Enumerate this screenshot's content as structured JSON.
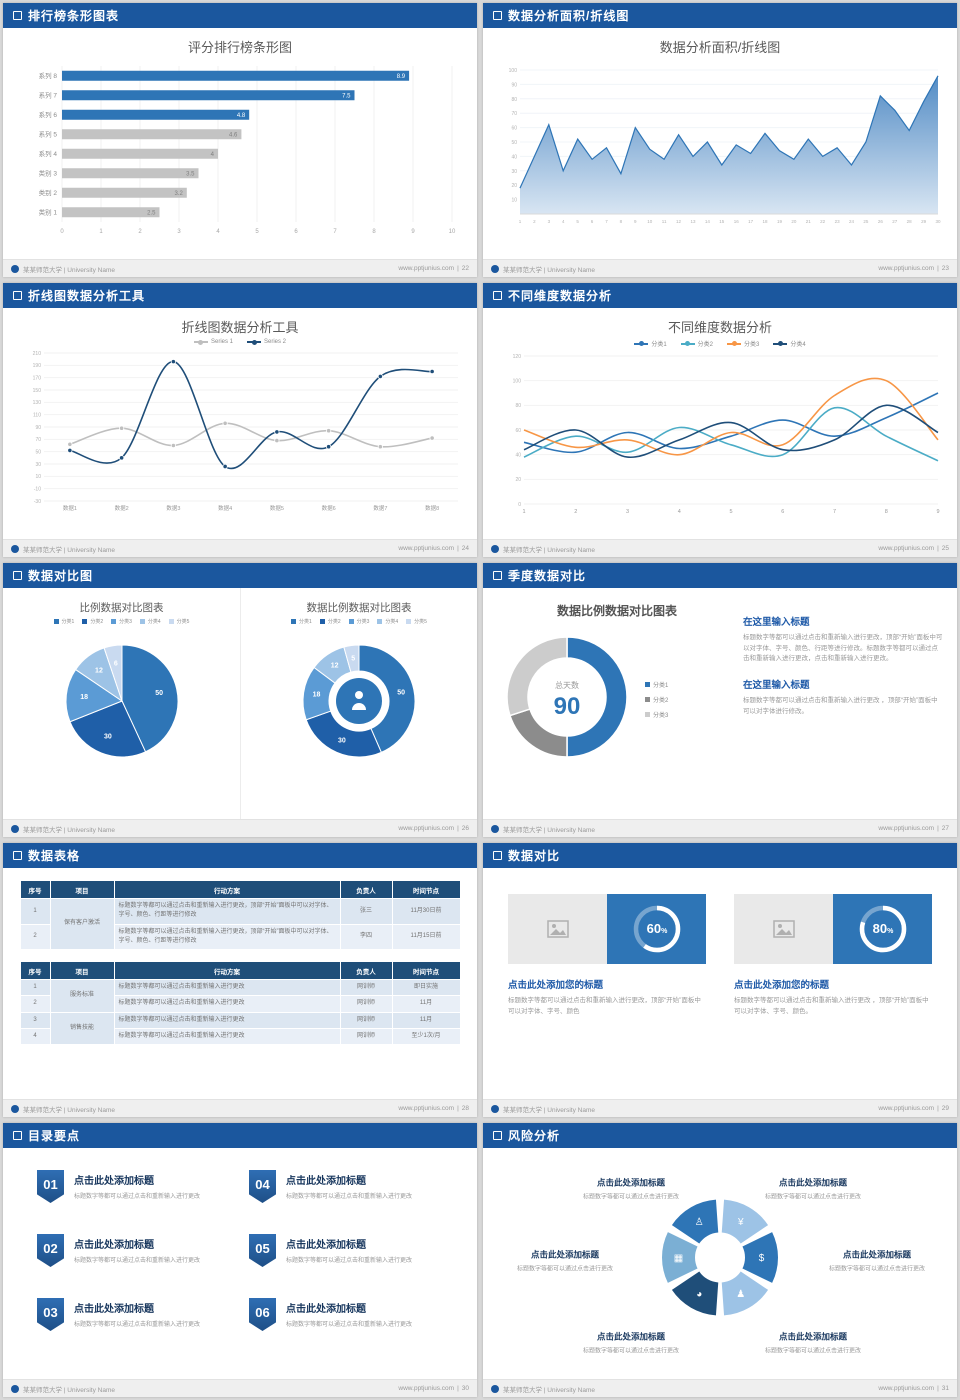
{
  "theme": {
    "header_blue": "#1b579e",
    "accent": "#2e75b6",
    "dark_blue": "#1f4e79",
    "bar_gray": "#c3c3c3",
    "title_gray": "#595959"
  },
  "footer": {
    "university": "某某师范大学 | University Name",
    "site": "www.pptjunius.com",
    "sep": "|"
  },
  "slides": [
    {
      "page": "22",
      "header": "排行榜条形图表",
      "title": "评分排行榜条形图",
      "chart": {
        "type": "bar",
        "orientation": "horizontal",
        "categories": [
          "系列 8",
          "系列 7",
          "系列 6",
          "系列 5",
          "系列 4",
          "类别 3",
          "类别 2",
          "类别 1"
        ],
        "values": [
          8.9,
          7.5,
          4.8,
          4.6,
          4,
          3.5,
          3.2,
          2.5
        ],
        "colors": [
          "#2e75b6",
          "#2e75b6",
          "#2e75b6",
          "#c3c3c3",
          "#c3c3c3",
          "#c3c3c3",
          "#c3c3c3",
          "#c3c3c3"
        ],
        "xlim": [
          0,
          10
        ],
        "xticks": [
          0,
          1,
          2,
          3,
          4,
          5,
          6,
          7,
          8,
          9,
          10
        ]
      }
    },
    {
      "page": "23",
      "header": "数据分析面积/折线图",
      "title": "数据分析面积/折线图",
      "chart": {
        "type": "area",
        "x": [
          1,
          2,
          3,
          4,
          5,
          6,
          7,
          8,
          9,
          10,
          11,
          12,
          13,
          14,
          15,
          16,
          17,
          18,
          19,
          20,
          21,
          22,
          23,
          24,
          25,
          26,
          27,
          28,
          29,
          30
        ],
        "values": [
          18,
          40,
          62,
          30,
          52,
          38,
          46,
          28,
          60,
          45,
          38,
          55,
          40,
          50,
          34,
          48,
          42,
          56,
          44,
          38,
          52,
          40,
          46,
          34,
          50,
          82,
          72,
          58,
          78,
          96
        ],
        "yticks": [
          100,
          90,
          80,
          70,
          60,
          50,
          40,
          30,
          20,
          10
        ],
        "ylim": [
          0,
          100
        ],
        "line_color": "#2e75b6",
        "fill_from": "#4a86c2",
        "fill_to": "#d6e4f2"
      }
    },
    {
      "page": "24",
      "header": "折线图数据分析工具",
      "title": "折线图数据分析工具",
      "chart": {
        "type": "line",
        "categories": [
          "数据1",
          "数据2",
          "数据3",
          "数据4",
          "数据5",
          "数据6",
          "数据7",
          "数据8"
        ],
        "yticks": [
          210,
          190,
          170,
          150,
          130,
          110,
          90,
          70,
          50,
          30,
          10,
          -10,
          -30
        ],
        "series": [
          {
            "name": "Series 1",
            "color": "#bfbfbf",
            "values": [
              62,
              88,
              60,
              96,
              68,
              84,
              58,
              72
            ]
          },
          {
            "name": "Series 2",
            "color": "#1f4e79",
            "values": [
              52,
              40,
              196,
              26,
              82,
              58,
              172,
              180
            ]
          }
        ]
      }
    },
    {
      "page": "25",
      "header": "不同维度数据分析",
      "title": "不同维度数据分析",
      "chart": {
        "type": "line",
        "x": [
          1,
          2,
          3,
          4,
          5,
          6,
          7,
          8,
          9
        ],
        "yticks": [
          120,
          100,
          80,
          60,
          40,
          20,
          0
        ],
        "series": [
          {
            "name": "分类1",
            "color": "#2e75b6",
            "values": [
              50,
              42,
              58,
              45,
              55,
              68,
              55,
              70,
              90
            ]
          },
          {
            "name": "分类2",
            "color": "#4bacc6",
            "values": [
              38,
              55,
              42,
              62,
              48,
              40,
              78,
              55,
              35
            ]
          },
          {
            "name": "分类3",
            "color": "#f79646",
            "values": [
              60,
              46,
              52,
              40,
              58,
              48,
              88,
              100,
              52
            ]
          },
          {
            "name": "分类4",
            "color": "#1f4e79",
            "values": [
              44,
              60,
              38,
              52,
              66,
              44,
              52,
              80,
              58
            ]
          }
        ]
      }
    },
    {
      "page": "26",
      "header": "数据对比图",
      "left": {
        "title": "比例数据对比图表",
        "chart": {
          "type": "pie",
          "values": [
            50,
            30,
            18,
            12,
            6
          ],
          "labels": [
            "50",
            "30",
            "18",
            "12",
            "6"
          ],
          "colors": [
            "#2e75b6",
            "#1f5fa8",
            "#5b9bd5",
            "#9dc3e6",
            "#c9daf0"
          ],
          "legend": [
            "分类1",
            "分类2",
            "分类3",
            "分类4",
            "分类5"
          ]
        }
      },
      "right": {
        "title": "数据比例数据对比图表",
        "chart": {
          "type": "donut",
          "values": [
            50,
            30,
            18,
            12,
            5
          ],
          "labels": [
            "50",
            "30",
            "18",
            "12",
            "5"
          ],
          "colors": [
            "#2e75b6",
            "#1f5fa8",
            "#5b9bd5",
            "#9dc3e6",
            "#c9daf0"
          ],
          "legend": [
            "分类1",
            "分类2",
            "分类3",
            "分类4",
            "分类5"
          ]
        }
      }
    },
    {
      "page": "27",
      "header": "季度数据对比",
      "title": "数据比例数据对比图表",
      "chart": {
        "type": "donut",
        "values": [
          50,
          20,
          30
        ],
        "colors": [
          "#2e75b6",
          "#8c8c8c",
          "#cccccc"
        ],
        "center_label": "总天数",
        "center_value": "90",
        "legend": [
          {
            "label": "分类1",
            "color": "#2e75b6"
          },
          {
            "label": "分类2",
            "color": "#8c8c8c"
          },
          {
            "label": "分类3",
            "color": "#cccccc"
          }
        ]
      },
      "blocks": [
        {
          "title": "在这里输入标题",
          "text": "标题数字等都可以通过点击和重新输入进行更改，顶部“开始”面板中可以对字体、字号、颜色、行距等进行修改。标题数字等都可以通过点击和重新输入进行更改，点击和重新输入进行更改。"
        },
        {
          "title": "在这里输入标题",
          "text": "标题数字等都可以通过点击和重新输入进行更改 ，顶部“开始”面板中可以对字体进行修改。"
        }
      ]
    },
    {
      "page": "28",
      "header": "数据表格",
      "tables": [
        {
          "columns": [
            "序号",
            "项目",
            "行动方案",
            "负责人",
            "时间节点"
          ],
          "rows": [
            [
              {
                "t": "1"
              },
              {
                "t": "保有客户激活",
                "rs": 2
              },
              {
                "t": "标题数字等都可以通过点击和重新输入进行更改，顶部“开始”面板中可以对字体、字号、颜色、行距等进行修改",
                "cls": "plan"
              },
              {
                "t": "张三"
              },
              {
                "t": "11月30日前"
              }
            ],
            [
              {
                "t": "2"
              },
              {
                "t": "标题数字等都可以通过点击和重新输入进行更改，顶部“开始”面板中可以对字体、字号、颜色、行距等进行修改",
                "cls": "plan"
              },
              {
                "t": "李四"
              },
              {
                "t": "11月15日前"
              }
            ]
          ]
        },
        {
          "columns": [
            "序号",
            "项目",
            "行动方案",
            "负责人",
            "时间节点"
          ],
          "rows": [
            [
              {
                "t": "1"
              },
              {
                "t": "服务标准",
                "rs": 2
              },
              {
                "t": "标题数字等都可以通过点击和重新输入进行更改",
                "cls": "plan"
              },
              {
                "t": "网训师"
              },
              {
                "t": "即日实施"
              }
            ],
            [
              {
                "t": "2"
              },
              {
                "t": "标题数字等都可以通过点击和重新输入进行更改",
                "cls": "plan"
              },
              {
                "t": "网训师"
              },
              {
                "t": "11月"
              }
            ],
            [
              {
                "t": "3"
              },
              {
                "t": "销售技能",
                "rs": 2
              },
              {
                "t": "标题数字等都可以通过点击和重新输入进行更改",
                "cls": "plan"
              },
              {
                "t": "网训师"
              },
              {
                "t": "11月"
              }
            ],
            [
              {
                "t": "4"
              },
              {
                "t": "标题数字等都可以通过点击和重新输入进行更改",
                "cls": "plan"
              },
              {
                "t": "网训师"
              },
              {
                "t": "至少1次/月"
              }
            ]
          ]
        }
      ]
    },
    {
      "page": "29",
      "header": "数据对比",
      "cards": [
        {
          "percent": 60,
          "title": "点击此处添加您的标题",
          "text": "标题数字等都可以通过点击和重新输入进行更改，顶部“开始”面板中可以对字体、字号、颜色"
        },
        {
          "percent": 80,
          "title": "点击此处添加您的标题",
          "text": "标题数字等都可以通过点击和重新输入进行更改 ，顶部“开始”面板中可以对字体、字号、颜色。"
        }
      ]
    },
    {
      "page": "30",
      "header": "目录要点",
      "items": [
        {
          "num": "01",
          "title": "点击此处添加标题",
          "text": "标题数字等都可以通过点击和重新输入进行更改"
        },
        {
          "num": "02",
          "title": "点击此处添加标题",
          "text": "标题数字等都可以通过点击和重新输入进行更改"
        },
        {
          "num": "03",
          "title": "点击此处添加标题",
          "text": "标题数字等都可以通过点击和重新输入进行更改"
        },
        {
          "num": "04",
          "title": "点击此处添加标题",
          "text": "标题数字等都可以通过点击和重新输入进行更改"
        },
        {
          "num": "05",
          "title": "点击此处添加标题",
          "text": "标题数字等都可以通过点击和重新输入进行更改"
        },
        {
          "num": "06",
          "title": "点击此处添加标题",
          "text": "标题数字等都可以通过点击和重新输入进行更改"
        }
      ]
    },
    {
      "page": "31",
      "header": "风险分析",
      "wheel": {
        "colors": [
          "#9dc3e6",
          "#2e75b6",
          "#9dc3e6",
          "#1f4e79",
          "#7bafd4",
          "#2e75b6"
        ],
        "icons": [
          {
            "name": "money-bag-icon",
            "glyph": "¥"
          },
          {
            "name": "coins-icon",
            "glyph": "$"
          },
          {
            "name": "people-icon",
            "glyph": "♟"
          },
          {
            "name": "pie-chart-icon",
            "glyph": "◕"
          },
          {
            "name": "bar-chart-icon",
            "glyph": "▦"
          },
          {
            "name": "person-icon",
            "glyph": "♙"
          }
        ]
      },
      "blocks": [
        {
          "title": "点击此处添加标题",
          "text": "标题数字等都可以通过点击进行更改"
        },
        {
          "title": "点击此处添加标题",
          "text": "标题数字等都可以通过点击进行更改"
        },
        {
          "title": "点击此处添加标题",
          "text": "标题数字等都可以通过点击进行更改"
        },
        {
          "title": "点击此处添加标题",
          "text": "标题数字等都可以通过点击进行更改"
        },
        {
          "title": "点击此处添加标题",
          "text": "标题数字等都可以通过点击进行更改"
        },
        {
          "title": "点击此处添加标题",
          "text": "标题数字等都可以通过点击进行更改"
        }
      ]
    }
  ]
}
